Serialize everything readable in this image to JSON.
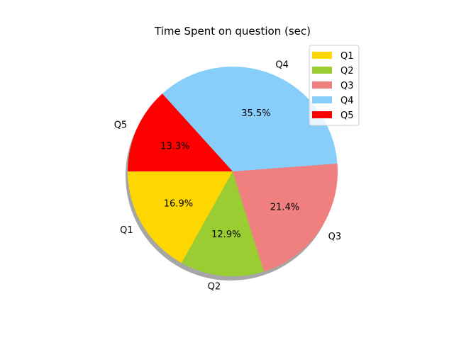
{
  "chart_data": {
    "type": "pie",
    "title": "Time Spent on question (sec)",
    "start_angle_deg": 180,
    "direction": "counterclockwise",
    "shadow": true,
    "legend": "top-right",
    "slices": [
      {
        "label": "Q1",
        "value": 16.9,
        "pct_label": "16.9%",
        "color": "#ffd700"
      },
      {
        "label": "Q2",
        "value": 12.9,
        "pct_label": "12.9%",
        "color": "#9acd32"
      },
      {
        "label": "Q3",
        "value": 21.4,
        "pct_label": "21.4%",
        "color": "#f08080"
      },
      {
        "label": "Q4",
        "value": 35.5,
        "pct_label": "35.5%",
        "color": "#87cefa"
      },
      {
        "label": "Q5",
        "value": 13.3,
        "pct_label": "13.3%",
        "color": "#ff0000"
      }
    ]
  }
}
